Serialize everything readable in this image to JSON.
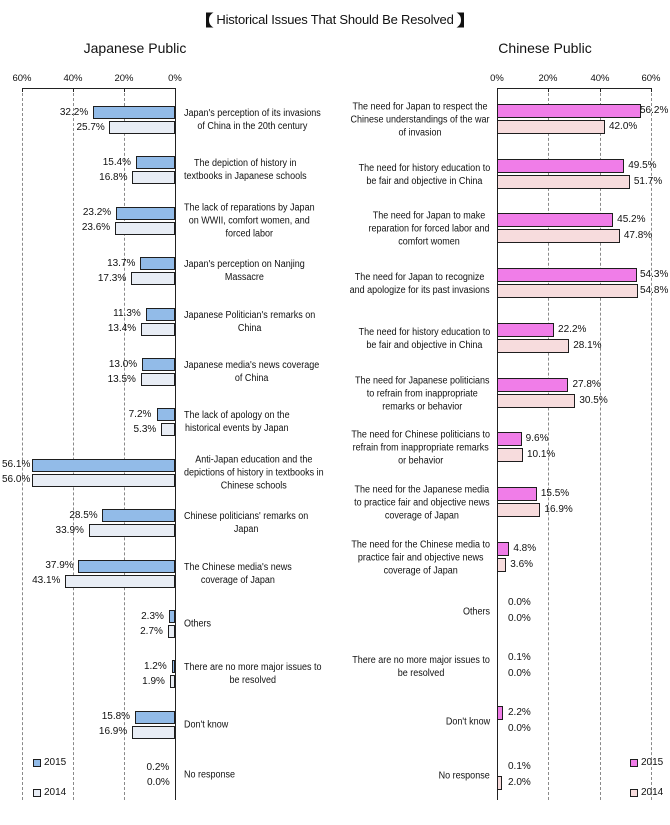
{
  "title": "Historical Issues That Should Be Resolved",
  "title_icons": [
    "left-lenticular-bracket-icon",
    "right-lenticular-bracket-icon"
  ],
  "colors": {
    "bar_outline": "#1e1e1e"
  },
  "chart_data": [
    {
      "type": "bar",
      "orientation": "horizontal",
      "direction": "right-to-left",
      "title": "Japanese Public",
      "categories": [
        "Japan's perception of its invasions\nof China in the 20th century",
        "The depiction of history in\ntextbooks in Japanese schools",
        "The lack of reparations by Japan\non WWII, comfort women, and\nforced labor",
        "Japan's perception on Nanjing\nMassacre",
        "Japanese Politician's remarks on\nChina",
        "Japanese media's news coverage\nof China",
        "The lack of apology on the\nhistorical events by Japan",
        "Anti-Japan education and the\ndepictions of history in textbooks in\nChinese schools",
        "Chinese politicians' remarks on\nJapan",
        "The Chinese media's news\ncoverage of Japan",
        "Others",
        "There are no more major issues to\nbe resolved",
        "Don't know",
        "No response"
      ],
      "series": [
        {
          "name": "2015",
          "color": "#92bbe8",
          "values": [
            32.2,
            15.4,
            23.2,
            13.7,
            11.3,
            13.0,
            7.2,
            56.1,
            28.5,
            37.9,
            2.3,
            1.2,
            15.8,
            0.2
          ]
        },
        {
          "name": "2014",
          "color": "#e8edf5",
          "values": [
            25.7,
            16.8,
            23.6,
            17.3,
            13.4,
            13.5,
            5.3,
            56.0,
            33.9,
            43.1,
            2.7,
            1.9,
            16.9,
            0.0
          ]
        }
      ],
      "xlim": [
        0,
        60
      ],
      "xticks": [
        "0%",
        "20%",
        "40%",
        "60%"
      ],
      "grid": true,
      "legend": "bottom-left"
    },
    {
      "type": "bar",
      "orientation": "horizontal",
      "direction": "left-to-right",
      "title": "Chinese Public",
      "categories": [
        "The need for Japan to respect the\nChinese understandings of the war\nof invasion",
        "The need for history education to\nbe fair and objective in China",
        "The need for Japan to make\nreparation for forced labor and\ncomfort women",
        "The need for Japan to recognize\nand apologize for its past invasions",
        "The need for history education to\nbe fair and objective in China",
        "The need for Japanese politicians\nto refrain from inappropriate\nremarks or behavior",
        "The need for Chinese politicians to\nrefrain from inappropriate remarks\nor behavior",
        "The need for the Japanese media\nto practice fair and objective news\ncoverage of Japan",
        "The need for the Chinese media to\npractice fair and objective news\ncoverage of Japan",
        "Others",
        "There are no more major issues to\nbe resolved",
        "Don't know",
        "No response"
      ],
      "series": [
        {
          "name": "2015",
          "color": "#f07de8",
          "values": [
            56.2,
            49.5,
            45.2,
            54.3,
            22.2,
            27.8,
            9.6,
            15.5,
            4.8,
            0.0,
            0.1,
            2.2,
            0.1
          ]
        },
        {
          "name": "2014",
          "color": "#f7dcdd",
          "values": [
            42.0,
            51.7,
            47.8,
            54.8,
            28.1,
            30.5,
            10.1,
            16.9,
            3.6,
            0.0,
            0.0,
            0.0,
            2.0
          ]
        }
      ],
      "xlim": [
        0,
        60
      ],
      "xticks": [
        "0%",
        "20%",
        "40%",
        "60%"
      ],
      "grid": true,
      "legend": "bottom-right"
    }
  ]
}
